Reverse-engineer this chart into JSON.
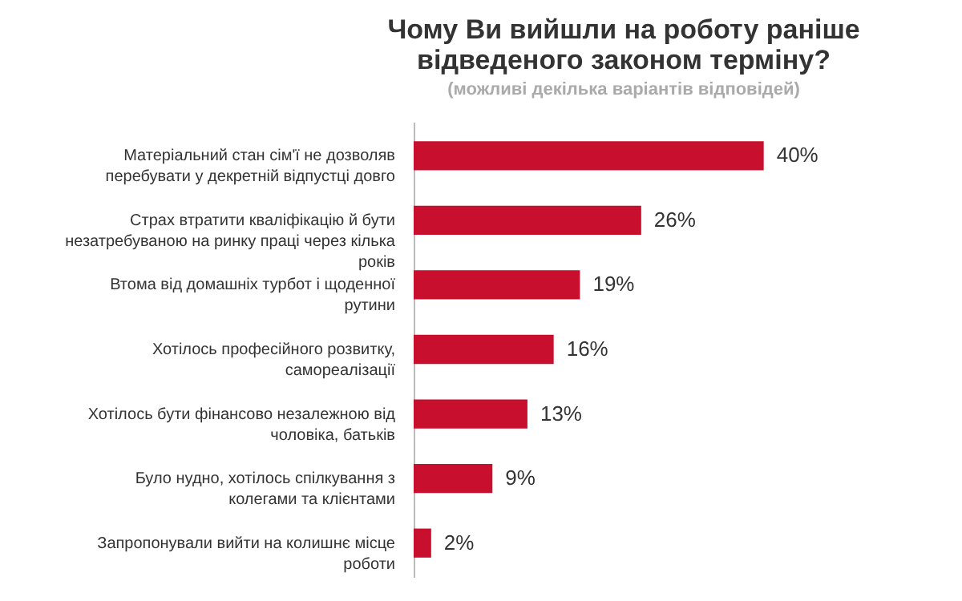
{
  "chart_data": {
    "type": "bar",
    "orientation": "horizontal",
    "title": "Чому Ви вийшли на роботу раніше відведеного законом терміну?",
    "subtitle": "(можливі декілька варіантів відповідей)",
    "categories": [
      "Матеріальний стан сім'ї не дозволяв перебувати у декретній відпустці довго",
      "Страх втратити кваліфікацію й бути незатребуваною на ринку праці через кілька років",
      "Втома від домашніх турбот і щоденної рутини",
      "Хотілось професійного розвитку, самореалізації",
      "Хотілось бути фінансово незалежною від чоловіка, батьків",
      "Було нудно, хотілось спілкування з колегами та клієнтами",
      "Запропонували вийти на колишнє місце роботи"
    ],
    "values": [
      40,
      26,
      19,
      16,
      13,
      9,
      2
    ],
    "value_labels": [
      "40%",
      "26%",
      "19%",
      "16%",
      "13%",
      "9%",
      "2%"
    ],
    "color": "#c8102e"
  }
}
